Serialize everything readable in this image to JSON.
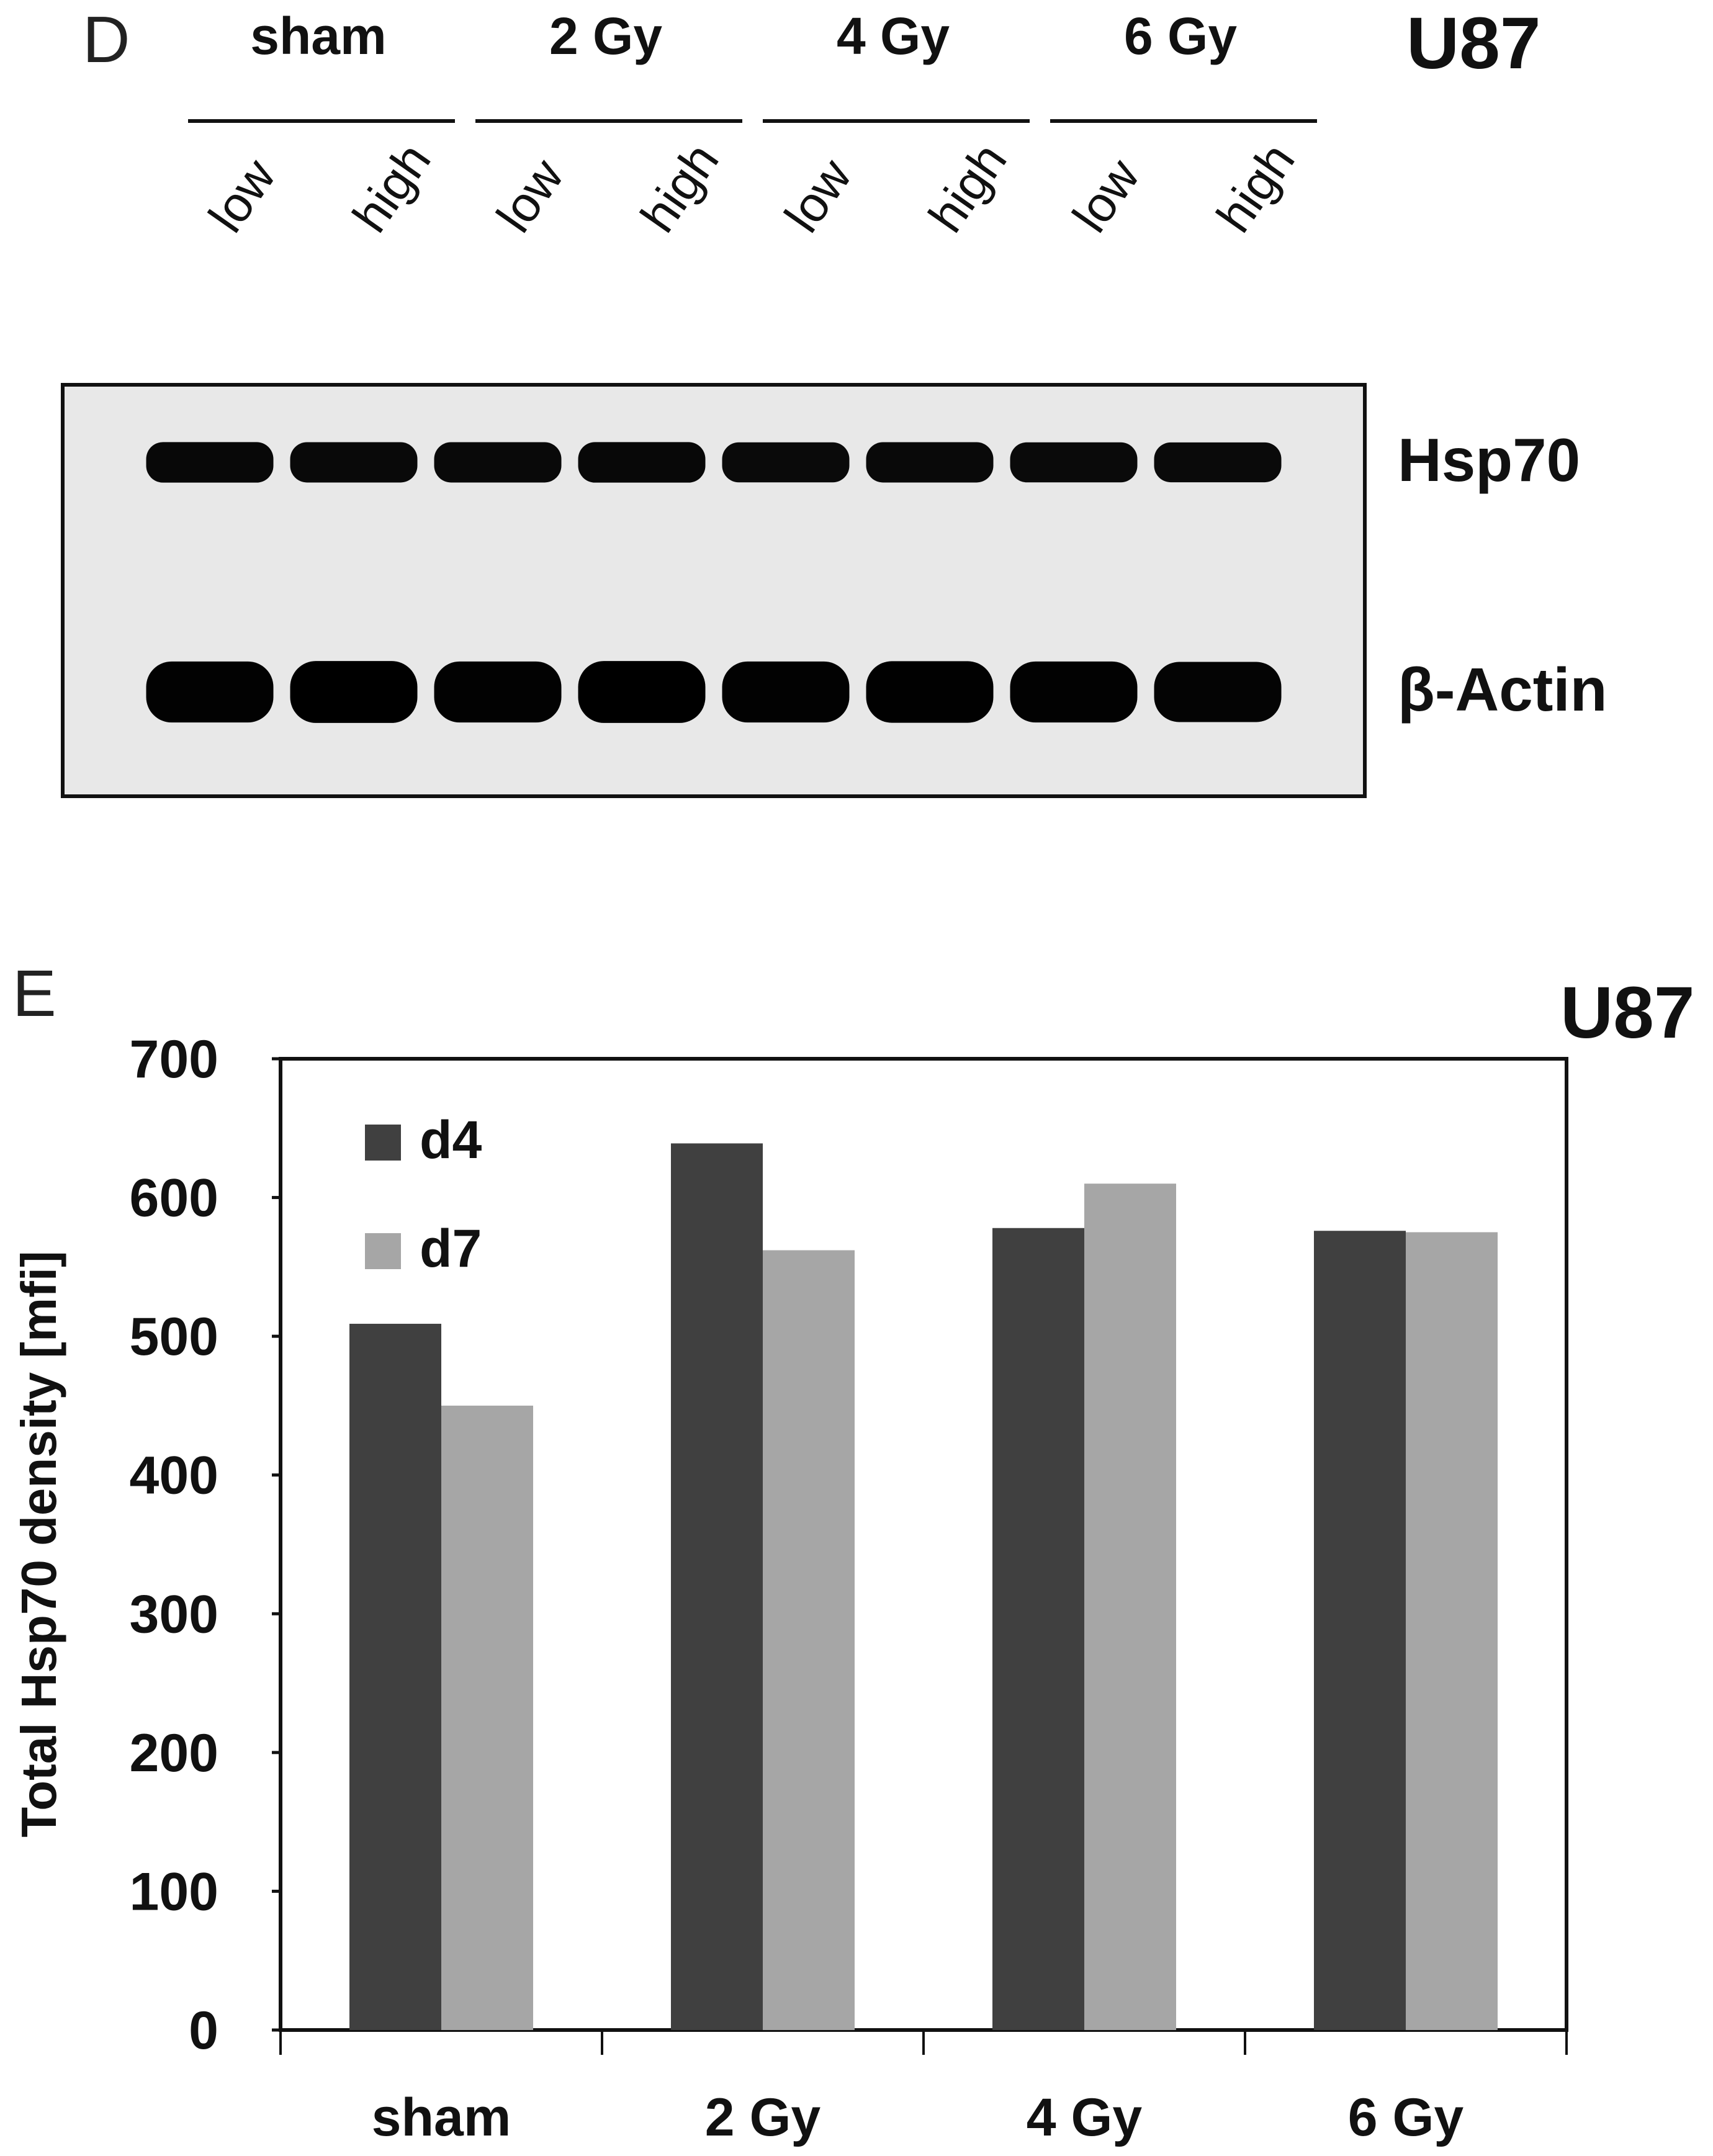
{
  "panel_d": {
    "letter": "D",
    "cell_line": "U87",
    "groups": [
      "sham",
      "2 Gy",
      "4 Gy",
      "6 Gy"
    ],
    "lane_labels": [
      "low",
      "high",
      "low",
      "high",
      "low",
      "high",
      "low",
      "high"
    ],
    "bands": [
      {
        "name": "Hsp70",
        "lane_intensity": [
          0.8,
          0.78,
          0.78,
          0.8,
          0.76,
          0.78,
          0.76,
          0.74
        ]
      },
      {
        "name": "β-Actin",
        "lane_intensity": [
          0.95,
          1.0,
          0.95,
          1.0,
          0.95,
          0.98,
          0.95,
          0.9
        ]
      }
    ]
  },
  "panel_e": {
    "letter": "E",
    "cell_line": "U87"
  },
  "chart_data": {
    "type": "bar",
    "title": "",
    "xlabel": "",
    "ylabel": "Total Hsp70 density [mfi]",
    "categories": [
      "sham",
      "2 Gy",
      "4 Gy",
      "6 Gy"
    ],
    "series": [
      {
        "name": "d4",
        "color": "#404040",
        "values": [
          509,
          639,
          578,
          576
        ]
      },
      {
        "name": "d7",
        "color": "#a6a6a6",
        "values": [
          450,
          562,
          610,
          575
        ]
      }
    ],
    "ylim": [
      0,
      700
    ],
    "yticks": [
      0,
      100,
      200,
      300,
      400,
      500,
      600,
      700
    ],
    "grid": false,
    "legend_position": "top-left"
  }
}
